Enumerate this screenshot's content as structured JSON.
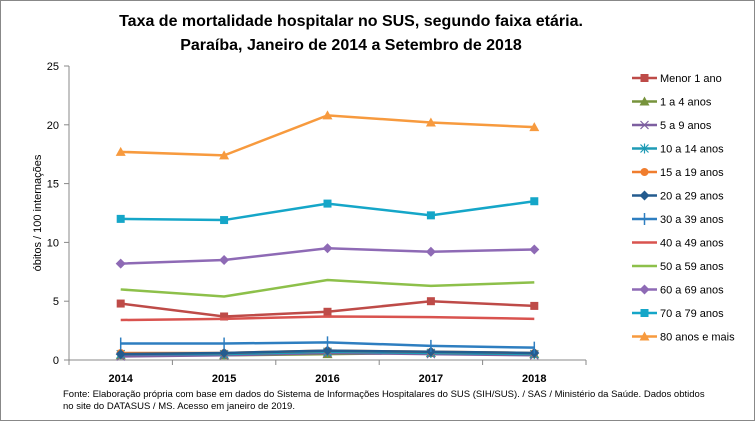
{
  "chart_data": {
    "type": "line",
    "title": "Taxa de mortalidade hospitalar no SUS, segundo faixa etária.",
    "subtitle": "Paraíba, Janeiro de 2014 a Setembro de 2018",
    "xlabel": "",
    "ylabel": "óbitos / 100 internações",
    "ylim": [
      0,
      25
    ],
    "yticks": [
      0,
      5,
      10,
      15,
      20,
      25
    ],
    "categories": [
      "2014",
      "2015",
      "2016",
      "2017",
      "2018"
    ],
    "grid": false,
    "legend": "right",
    "series": [
      {
        "name": "Menor 1 ano",
        "color": "#BE4B48",
        "marker": "square",
        "values": [
          4.8,
          3.7,
          4.1,
          5.0,
          4.6
        ]
      },
      {
        "name": "1 a 4 anos",
        "color": "#77933C",
        "marker": "triangle",
        "values": [
          0.4,
          0.4,
          0.5,
          0.6,
          0.5
        ]
      },
      {
        "name": "5 a 9 anos",
        "color": "#7D5FA0",
        "marker": "x",
        "values": [
          0.3,
          0.4,
          0.6,
          0.5,
          0.4
        ]
      },
      {
        "name": "10 a 14 anos",
        "color": "#1F9BB5",
        "marker": "star",
        "values": [
          0.5,
          0.5,
          0.7,
          0.6,
          0.5
        ]
      },
      {
        "name": "15 a 19 anos",
        "color": "#F07D2E",
        "marker": "circle",
        "values": [
          0.6,
          0.6,
          0.8,
          0.7,
          0.6
        ]
      },
      {
        "name": "20 a 29 anos",
        "color": "#245C8F",
        "marker": "diamond",
        "values": [
          0.5,
          0.6,
          0.8,
          0.7,
          0.6
        ]
      },
      {
        "name": "30 a 39 anos",
        "color": "#2E7EC0",
        "marker": "plus",
        "values": [
          1.4,
          1.4,
          1.5,
          1.2,
          1.05
        ]
      },
      {
        "name": "40 a 49 anos",
        "color": "#D9534F",
        "marker": "none",
        "values": [
          3.4,
          3.5,
          3.7,
          3.65,
          3.5
        ]
      },
      {
        "name": "50 a 59 anos",
        "color": "#8DC04A",
        "marker": "none",
        "values": [
          6.0,
          5.4,
          6.8,
          6.3,
          6.6
        ]
      },
      {
        "name": "60 a 69 anos",
        "color": "#8E6AB5",
        "marker": "diamond",
        "values": [
          8.2,
          8.5,
          9.5,
          9.2,
          9.4
        ]
      },
      {
        "name": "70 a 79 anos",
        "color": "#15A6C8",
        "marker": "square",
        "values": [
          12.0,
          11.9,
          13.3,
          12.3,
          13.5
        ]
      },
      {
        "name": "80 anos e mais",
        "color": "#F79A3E",
        "marker": "triangle",
        "values": [
          17.7,
          17.4,
          20.8,
          20.2,
          19.8
        ]
      }
    ]
  },
  "note": "Fonte: Elaboração própria com base em dados do  Sistema de Informações Hospitalares do SUS (SIH/SUS). / SAS / Ministério da Saúde. Dados obtidos no site do DATASUS / MS. Acesso em janeiro de 2019."
}
